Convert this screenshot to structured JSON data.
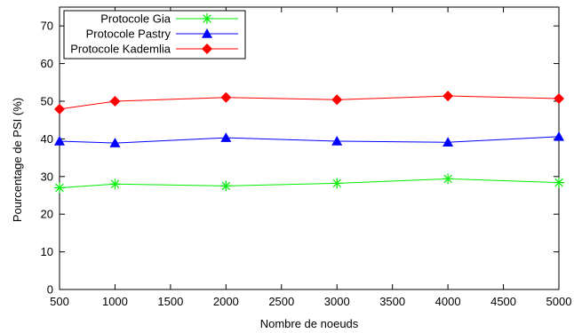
{
  "chart_data": {
    "type": "line",
    "title": "",
    "xlabel": "Nombre de noeuds",
    "ylabel": "Pourcentage de PSI (%)",
    "xlim": [
      500,
      5000
    ],
    "ylim": [
      0,
      75
    ],
    "xticks": [
      500,
      1000,
      1500,
      2000,
      2500,
      3000,
      3500,
      4000,
      4500,
      5000
    ],
    "yticks": [
      0,
      10,
      20,
      30,
      40,
      50,
      60,
      70
    ],
    "legend_position": "top-left",
    "grid": false,
    "series": [
      {
        "name": "Protocole Gia",
        "color": "#00ee00",
        "marker": "asterisk",
        "x": [
          500,
          1000,
          2000,
          3000,
          4000,
          5000
        ],
        "y": [
          27,
          28,
          27.5,
          28.2,
          29.4,
          28.4
        ]
      },
      {
        "name": "Protocole Pastry",
        "color": "#0000ff",
        "marker": "triangle",
        "x": [
          500,
          1000,
          2000,
          3000,
          4000,
          5000
        ],
        "y": [
          39.4,
          38.9,
          40.3,
          39.4,
          39.1,
          40.6
        ]
      },
      {
        "name": "Protocole Kademlia",
        "color": "#ff0000",
        "marker": "diamond",
        "x": [
          500,
          1000,
          2000,
          3000,
          4000,
          5000
        ],
        "y": [
          47.9,
          50.0,
          51.0,
          50.4,
          51.4,
          50.7
        ]
      }
    ]
  }
}
